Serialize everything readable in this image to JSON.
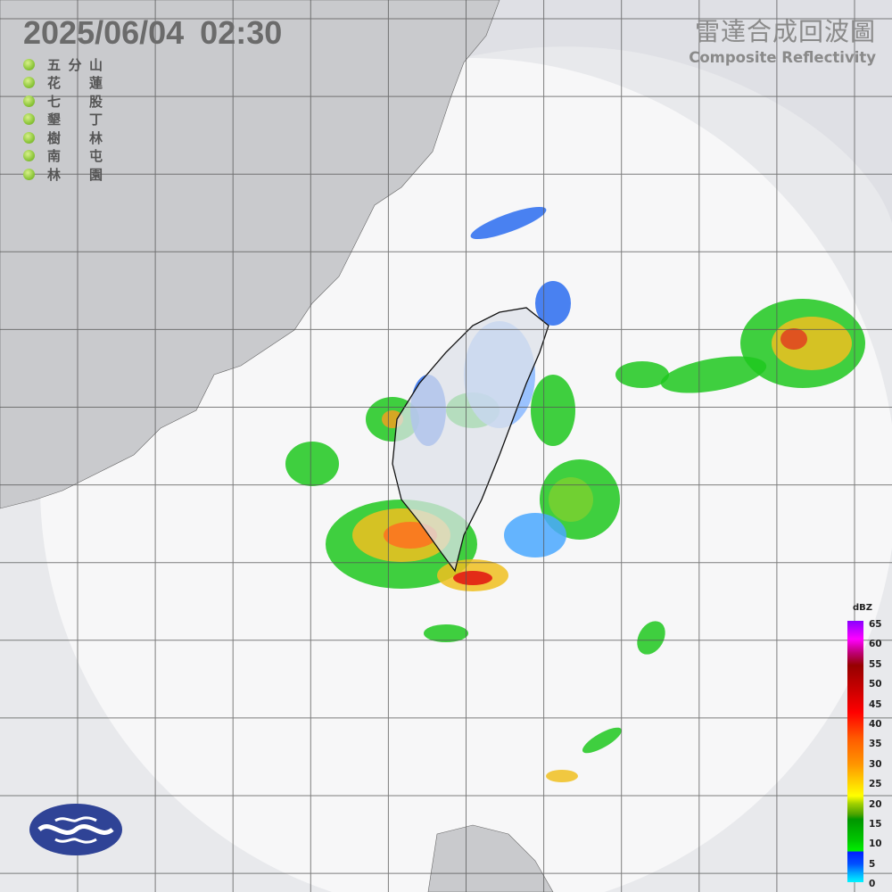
{
  "header": {
    "datetime": "2025/06/04  02:30",
    "product_zh": "雷達合成回波圖",
    "product_en": "Composite Reflectivity"
  },
  "stations": [
    {
      "a": "五",
      "b": "分",
      "c": "山"
    },
    {
      "a": "花",
      "b": "",
      "c": "蓮"
    },
    {
      "a": "七",
      "b": "",
      "c": "股"
    },
    {
      "a": "墾",
      "b": "",
      "c": "丁"
    },
    {
      "a": "樹",
      "b": "",
      "c": "林"
    },
    {
      "a": "南",
      "b": "",
      "c": "屯"
    },
    {
      "a": "林",
      "b": "",
      "c": "園"
    }
  ],
  "legend": {
    "unit": "dBZ",
    "ticks": [
      "65",
      "60",
      "55",
      "50",
      "45",
      "40",
      "35",
      "30",
      "25",
      "20",
      "15",
      "10",
      "5",
      "0"
    ]
  },
  "colors": {
    "outside_coverage": "#dfe0e5",
    "coverage": "#f7f7f8",
    "land": "#c9cacd",
    "station_dot": "#8cc63a",
    "logo": "#2f4396"
  },
  "icons": {
    "logo": "cwa-logo",
    "station": "station-dot-icon"
  }
}
